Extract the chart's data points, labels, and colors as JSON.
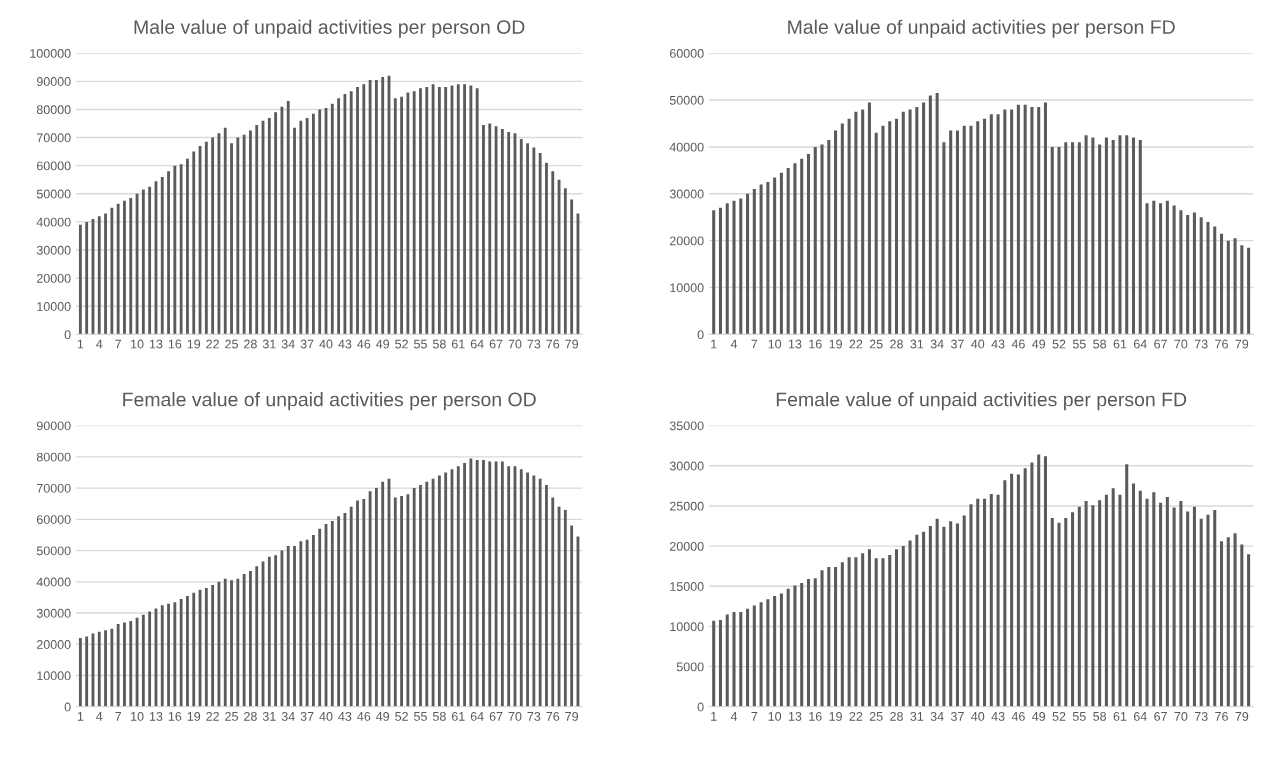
{
  "chart_data": [
    {
      "type": "bar",
      "title": "Male value of unpaid activities per person OD",
      "categories": [
        "1",
        null,
        null,
        "4",
        null,
        null,
        "7",
        null,
        null,
        "10",
        null,
        null,
        "13",
        null,
        null,
        "16",
        null,
        null,
        "19",
        null,
        null,
        "22",
        null,
        null,
        "25",
        null,
        null,
        "28",
        null,
        null,
        "31",
        null,
        null,
        "34",
        null,
        null,
        "37",
        null,
        null,
        "40",
        null,
        null,
        "43",
        null,
        null,
        "46",
        null,
        null,
        "49",
        null,
        null,
        "52",
        null,
        null,
        "55",
        null,
        null,
        "58",
        null,
        null,
        "61",
        null,
        null,
        "64",
        null,
        null,
        "67",
        null,
        null,
        "70",
        null,
        null,
        "73",
        null,
        null,
        "76",
        null,
        null,
        "79",
        null
      ],
      "color": "#5a5a5a",
      "ylim": [
        0,
        100000
      ],
      "yticks": [
        0,
        10000,
        20000,
        30000,
        40000,
        50000,
        60000,
        70000,
        80000,
        90000,
        100000
      ],
      "grid": "y",
      "values": [
        39000,
        40000,
        41000,
        42000,
        43000,
        45000,
        46500,
        47500,
        48500,
        50000,
        51500,
        52500,
        54500,
        56000,
        58000,
        60000,
        60500,
        62500,
        65000,
        67000,
        68500,
        70000,
        71500,
        73500,
        68000,
        70000,
        71000,
        72500,
        74500,
        76000,
        77000,
        79000,
        81000,
        83000,
        73500,
        76000,
        77000,
        78500,
        80000,
        80500,
        82000,
        84000,
        85500,
        86500,
        88000,
        89000,
        90500,
        90500,
        91500,
        92000,
        84000,
        84500,
        86000,
        86500,
        87500,
        88000,
        89000,
        88000,
        88000,
        88500,
        89000,
        89000,
        88500,
        87500,
        74500,
        75000,
        74000,
        73000,
        72000,
        71500,
        69500,
        68000,
        66500,
        64500,
        61000,
        58000,
        55000,
        52000,
        48000,
        43000
      ]
    },
    {
      "type": "bar",
      "title": "Male value of unpaid activities per person FD",
      "categories": [
        "1",
        null,
        null,
        "4",
        null,
        null,
        "7",
        null,
        null,
        "10",
        null,
        null,
        "13",
        null,
        null,
        "16",
        null,
        null,
        "19",
        null,
        null,
        "22",
        null,
        null,
        "25",
        null,
        null,
        "28",
        null,
        null,
        "31",
        null,
        null,
        "34",
        null,
        null,
        "37",
        null,
        null,
        "40",
        null,
        null,
        "43",
        null,
        null,
        "46",
        null,
        null,
        "49",
        null,
        null,
        "52",
        null,
        null,
        "55",
        null,
        null,
        "58",
        null,
        null,
        "61",
        null,
        null,
        "64",
        null,
        null,
        "67",
        null,
        null,
        "70",
        null,
        null,
        "73",
        null,
        null,
        "76",
        null,
        null,
        "79",
        null
      ],
      "color": "#5a5a5a",
      "ylim": [
        0,
        60000
      ],
      "yticks": [
        0,
        10000,
        20000,
        30000,
        40000,
        50000,
        60000
      ],
      "grid": "y",
      "values": [
        26500,
        27000,
        28000,
        28500,
        29000,
        30000,
        31000,
        32000,
        32500,
        33500,
        34500,
        35500,
        36500,
        37500,
        38500,
        40000,
        40500,
        41500,
        43500,
        45000,
        46000,
        47500,
        48000,
        49500,
        43000,
        44500,
        45500,
        46000,
        47500,
        48000,
        48500,
        49500,
        51000,
        51500,
        41000,
        43500,
        43500,
        44500,
        44500,
        45500,
        46000,
        47000,
        47000,
        48000,
        48000,
        49000,
        49000,
        48500,
        48500,
        49500,
        40000,
        40000,
        41000,
        41000,
        41000,
        42500,
        42000,
        40500,
        42000,
        41500,
        42500,
        42500,
        42000,
        41500,
        28000,
        28500,
        28000,
        28500,
        27500,
        26500,
        25500,
        26000,
        25000,
        24000,
        23000,
        21500,
        20000,
        20500,
        19000,
        18500
      ]
    },
    {
      "type": "bar",
      "title": "Female value of unpaid activities per person OD",
      "categories": [
        "1",
        null,
        null,
        "4",
        null,
        null,
        "7",
        null,
        null,
        "10",
        null,
        null,
        "13",
        null,
        null,
        "16",
        null,
        null,
        "19",
        null,
        null,
        "22",
        null,
        null,
        "25",
        null,
        null,
        "28",
        null,
        null,
        "31",
        null,
        null,
        "34",
        null,
        null,
        "37",
        null,
        null,
        "40",
        null,
        null,
        "43",
        null,
        null,
        "46",
        null,
        null,
        "49",
        null,
        null,
        "52",
        null,
        null,
        "55",
        null,
        null,
        "58",
        null,
        null,
        "61",
        null,
        null,
        "64",
        null,
        null,
        "67",
        null,
        null,
        "70",
        null,
        null,
        "73",
        null,
        null,
        "76",
        null,
        null,
        "79",
        null
      ],
      "color": "#5a5a5a",
      "ylim": [
        0,
        90000
      ],
      "yticks": [
        0,
        10000,
        20000,
        30000,
        40000,
        50000,
        60000,
        70000,
        80000,
        90000
      ],
      "grid": "y",
      "values": [
        22000,
        22500,
        23500,
        24000,
        24500,
        25000,
        26500,
        27000,
        27500,
        28500,
        29500,
        30500,
        31500,
        32500,
        33000,
        33500,
        34500,
        35500,
        36500,
        37500,
        38000,
        39000,
        40000,
        41000,
        40500,
        41000,
        42500,
        43500,
        45000,
        46500,
        48000,
        48500,
        50000,
        51500,
        51500,
        53000,
        53500,
        55000,
        57000,
        58500,
        59500,
        61000,
        62000,
        64000,
        66000,
        66500,
        69000,
        70000,
        72000,
        73000,
        67000,
        67500,
        68000,
        70000,
        71000,
        72000,
        73000,
        74000,
        75000,
        76000,
        77000,
        78000,
        79500,
        79000,
        79000,
        78500,
        78500,
        78500,
        77000,
        77000,
        76000,
        75000,
        74000,
        73000,
        71000,
        67000,
        64000,
        63000,
        58000,
        54500
      ]
    },
    {
      "type": "bar",
      "title": "Female value of unpaid activities per person FD",
      "categories": [
        "1",
        null,
        null,
        "4",
        null,
        null,
        "7",
        null,
        null,
        "10",
        null,
        null,
        "13",
        null,
        null,
        "16",
        null,
        null,
        "19",
        null,
        null,
        "22",
        null,
        null,
        "25",
        null,
        null,
        "28",
        null,
        null,
        "31",
        null,
        null,
        "34",
        null,
        null,
        "37",
        null,
        null,
        "40",
        null,
        null,
        "43",
        null,
        null,
        "46",
        null,
        null,
        "49",
        null,
        null,
        "52",
        null,
        null,
        "55",
        null,
        null,
        "58",
        null,
        null,
        "61",
        null,
        null,
        "64",
        null,
        null,
        "67",
        null,
        null,
        "70",
        null,
        null,
        "73",
        null,
        null,
        "76",
        null,
        null,
        "79",
        null
      ],
      "color": "#5a5a5a",
      "ylim": [
        0,
        35000
      ],
      "yticks": [
        0,
        5000,
        10000,
        15000,
        20000,
        25000,
        30000,
        35000
      ],
      "grid": "y",
      "values": [
        10700,
        10800,
        11500,
        11800,
        11800,
        12200,
        12600,
        13000,
        13400,
        13800,
        14100,
        14700,
        15100,
        15400,
        15900,
        16000,
        17000,
        17400,
        17400,
        18000,
        18600,
        18600,
        19100,
        19600,
        18500,
        18500,
        18900,
        19600,
        20000,
        20700,
        21400,
        21800,
        22500,
        23400,
        22400,
        23100,
        22800,
        23800,
        25200,
        25900,
        25900,
        26500,
        26400,
        28200,
        29000,
        28900,
        29700,
        30400,
        31400,
        31200,
        23500,
        22900,
        23500,
        24200,
        24900,
        25600,
        25100,
        25700,
        26400,
        27200,
        26400,
        30200,
        27800,
        26900,
        25900,
        26700,
        25400,
        26100,
        24800,
        25600,
        24300,
        24900,
        23400,
        23900,
        24500,
        20600,
        21100,
        21600,
        20200,
        19000
      ]
    }
  ]
}
